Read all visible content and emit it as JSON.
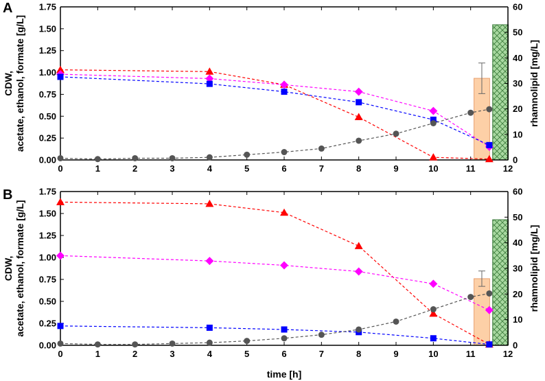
{
  "figure": {
    "xlabel": "time [h]"
  },
  "colors": {
    "acetate": "#ff0000",
    "ethanol": "#ff00ff",
    "formate": "#0000ff",
    "cdw": "#555555",
    "rhl_bar": "#fdd0a7",
    "rhl_bar2": "#a8d8a0"
  },
  "chart_data": [
    {
      "type": "line",
      "panel_label": "A",
      "ylabel_left_line1": "CDW,",
      "ylabel_left_line2": "acetate, ethanol, formate [g/L]",
      "ylabel_right": "rhamnolipid [mg/L]",
      "xlim": [
        0,
        12
      ],
      "ylim": [
        0,
        1.75
      ],
      "ylim_right": [
        0,
        60
      ],
      "xticks": [
        "0",
        "1",
        "2",
        "3",
        "4",
        "5",
        "6",
        "7",
        "8",
        "9",
        "10",
        "11",
        "12"
      ],
      "yticks": [
        "0.00",
        "0.25",
        "0.50",
        "0.75",
        "1.00",
        "1.25",
        "1.50",
        "1.75"
      ],
      "yticks_right": [
        "0",
        "10",
        "20",
        "30",
        "40",
        "50",
        "60"
      ],
      "series": [
        {
          "key": "acetate",
          "marker": "triangle",
          "x": [
            0,
            4,
            6,
            8,
            10,
            11.5
          ],
          "values": [
            1.03,
            1.01,
            0.86,
            0.49,
            0.03,
            0.01
          ]
        },
        {
          "key": "ethanol",
          "marker": "diamond",
          "x": [
            0,
            4,
            6,
            8,
            10,
            11.5
          ],
          "values": [
            0.98,
            0.93,
            0.86,
            0.78,
            0.56,
            0.15
          ]
        },
        {
          "key": "formate",
          "marker": "square",
          "x": [
            0,
            4,
            6,
            8,
            10,
            11.5
          ],
          "values": [
            0.95,
            0.87,
            0.78,
            0.66,
            0.46,
            0.17
          ]
        },
        {
          "key": "cdw",
          "marker": "circle",
          "x": [
            0,
            1,
            2,
            3,
            4,
            5,
            6,
            7,
            8,
            9,
            10,
            11,
            11.5
          ],
          "values": [
            0.02,
            0.01,
            0.02,
            0.02,
            0.03,
            0.06,
            0.09,
            0.13,
            0.22,
            0.3,
            0.42,
            0.54,
            0.58
          ]
        }
      ],
      "bars": [
        {
          "x": 11.3,
          "value": 32,
          "err": 6,
          "style": "solid"
        },
        {
          "x": 11.8,
          "value": 53,
          "err": 0,
          "style": "hatched"
        }
      ]
    },
    {
      "type": "line",
      "panel_label": "B",
      "ylabel_left_line1": "CDW,",
      "ylabel_left_line2": "acetate, ethanol, formate [g/L]",
      "ylabel_right": "rhamnolipid [mg/L]",
      "xlim": [
        0,
        12
      ],
      "ylim": [
        0,
        1.75
      ],
      "ylim_right": [
        0,
        60
      ],
      "xticks": [
        "0",
        "1",
        "2",
        "3",
        "4",
        "5",
        "6",
        "7",
        "8",
        "9",
        "10",
        "11",
        "12"
      ],
      "yticks": [
        "0.00",
        "0.25",
        "0.50",
        "0.75",
        "1.00",
        "1.25",
        "1.50",
        "1.75"
      ],
      "yticks_right": [
        "0",
        "10",
        "20",
        "30",
        "40",
        "50",
        "60"
      ],
      "series": [
        {
          "key": "acetate",
          "marker": "triangle",
          "x": [
            0,
            4,
            6,
            8,
            10,
            11.5
          ],
          "values": [
            1.63,
            1.61,
            1.51,
            1.13,
            0.36,
            0.01
          ]
        },
        {
          "key": "ethanol",
          "marker": "diamond",
          "x": [
            0,
            4,
            6,
            8,
            10,
            11.5
          ],
          "values": [
            1.02,
            0.96,
            0.91,
            0.84,
            0.7,
            0.4
          ]
        },
        {
          "key": "formate",
          "marker": "square",
          "x": [
            0,
            4,
            6,
            8,
            10,
            11.5
          ],
          "values": [
            0.22,
            0.2,
            0.18,
            0.15,
            0.08,
            0.01
          ]
        },
        {
          "key": "cdw",
          "marker": "circle",
          "x": [
            0,
            1,
            2,
            3,
            4,
            5,
            6,
            7,
            8,
            9,
            10,
            11,
            11.5
          ],
          "values": [
            0.02,
            0.01,
            0.01,
            0.02,
            0.03,
            0.05,
            0.08,
            0.12,
            0.18,
            0.27,
            0.41,
            0.55,
            0.59
          ]
        }
      ],
      "bars": [
        {
          "x": 11.3,
          "value": 26,
          "err": 3,
          "style": "solid"
        },
        {
          "x": 11.8,
          "value": 49,
          "err": 0,
          "style": "hatched"
        }
      ]
    }
  ]
}
